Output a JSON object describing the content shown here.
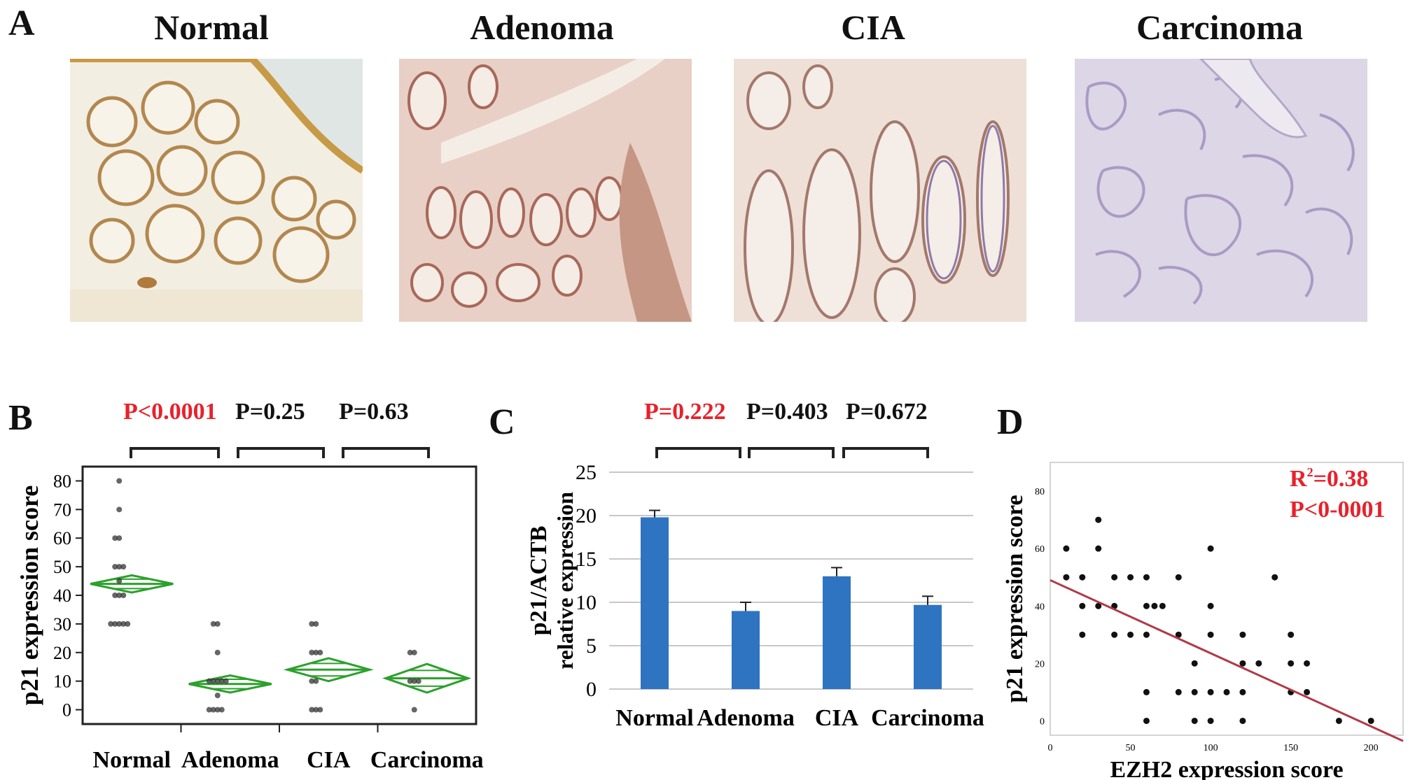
{
  "panel_a": {
    "letter": "A",
    "images": [
      {
        "label": "Normal",
        "stain": "brown"
      },
      {
        "label": "Adenoma",
        "stain": "reddish-brown"
      },
      {
        "label": "CIA",
        "stain": "light-brown"
      },
      {
        "label": "Carcinoma",
        "stain": "purple"
      }
    ]
  },
  "panel_b": {
    "letter": "B"
  },
  "panel_c": {
    "letter": "C"
  },
  "panel_d": {
    "letter": "D"
  },
  "chart_data": [
    {
      "panel": "B",
      "type": "scatter",
      "ylabel": "p21 expression score",
      "categories": [
        "Normal",
        "Adenoma",
        "CIA",
        "Carcinoma"
      ],
      "ylim": [
        -5,
        85
      ],
      "yticks": [
        0,
        10,
        20,
        30,
        40,
        50,
        60,
        70,
        80
      ],
      "means": [
        44,
        9,
        14,
        11
      ],
      "ci": [
        [
          41,
          47
        ],
        [
          6,
          12
        ],
        [
          10,
          18
        ],
        [
          6,
          16
        ]
      ],
      "points": [
        [
          80,
          70,
          60,
          60,
          50,
          50,
          50,
          45,
          40,
          40,
          40,
          30,
          30,
          30,
          30,
          30
        ],
        [
          30,
          30,
          20,
          10,
          10,
          10,
          10,
          10,
          0,
          0,
          0,
          0,
          5
        ],
        [
          30,
          30,
          20,
          20,
          20,
          10,
          10,
          0,
          0,
          0
        ],
        [
          20,
          20,
          10,
          10,
          10,
          0
        ]
      ],
      "comparisons": [
        {
          "text": "P<0.0001",
          "color": "#e8212b"
        },
        {
          "text": "P=0.25",
          "color": "#111111"
        },
        {
          "text": "P=0.63",
          "color": "#111111"
        }
      ],
      "colors": {
        "diamond": "#2ca02c",
        "points": "#333333"
      }
    },
    {
      "panel": "C",
      "type": "bar",
      "ylabel": "p21/ACTB",
      "ylabel2": "relative expression",
      "categories": [
        "Normal",
        "Adenoma",
        "CIA",
        "Carcinoma"
      ],
      "values": [
        19.8,
        9,
        13,
        9.7
      ],
      "errors": [
        0.8,
        1,
        1,
        1
      ],
      "ylim": [
        0,
        25
      ],
      "yticks": [
        0,
        5,
        10,
        15,
        20,
        25
      ],
      "grid": true,
      "comparisons": [
        {
          "text": "P=0.222",
          "color": "#e8212b"
        },
        {
          "text": "P=0.403",
          "color": "#111111"
        },
        {
          "text": "P=0.672",
          "color": "#111111"
        }
      ],
      "colors": {
        "bar": "#2e74c0"
      }
    },
    {
      "panel": "D",
      "type": "scatter",
      "xlabel": "EZH2 expression score",
      "ylabel": "p21 expression score",
      "xlim": [
        0,
        220
      ],
      "ylim": [
        -5,
        90
      ],
      "xticks": [
        0,
        50,
        100,
        150,
        200
      ],
      "yticks": [
        0,
        20,
        40,
        60,
        80
      ],
      "points": [
        [
          10,
          50
        ],
        [
          10,
          60
        ],
        [
          20,
          50
        ],
        [
          20,
          40
        ],
        [
          20,
          30
        ],
        [
          30,
          70
        ],
        [
          30,
          60
        ],
        [
          30,
          40
        ],
        [
          40,
          50
        ],
        [
          40,
          40
        ],
        [
          40,
          30
        ],
        [
          50,
          50
        ],
        [
          50,
          30
        ],
        [
          60,
          50
        ],
        [
          60,
          40
        ],
        [
          60,
          30
        ],
        [
          60,
          10
        ],
        [
          60,
          0
        ],
        [
          65,
          40
        ],
        [
          70,
          40
        ],
        [
          80,
          50
        ],
        [
          80,
          30
        ],
        [
          80,
          10
        ],
        [
          90,
          20
        ],
        [
          90,
          10
        ],
        [
          90,
          0
        ],
        [
          100,
          60
        ],
        [
          100,
          40
        ],
        [
          100,
          30
        ],
        [
          100,
          10
        ],
        [
          100,
          0
        ],
        [
          110,
          10
        ],
        [
          120,
          30
        ],
        [
          120,
          20
        ],
        [
          120,
          10
        ],
        [
          120,
          0
        ],
        [
          130,
          20
        ],
        [
          140,
          50
        ],
        [
          150,
          30
        ],
        [
          150,
          20
        ],
        [
          150,
          10
        ],
        [
          160,
          20
        ],
        [
          160,
          10
        ],
        [
          180,
          0
        ],
        [
          200,
          0
        ]
      ],
      "fit": {
        "x": [
          0,
          220
        ],
        "y": [
          49,
          -7
        ]
      },
      "stat_r2_prefix": "R",
      "stat_r2_sup": "2",
      "stat_r2_value": "=0.38",
      "stat_p": "P<0-0001",
      "colors": {
        "fit": "#b03a48",
        "stats": "#e8212b"
      }
    }
  ]
}
